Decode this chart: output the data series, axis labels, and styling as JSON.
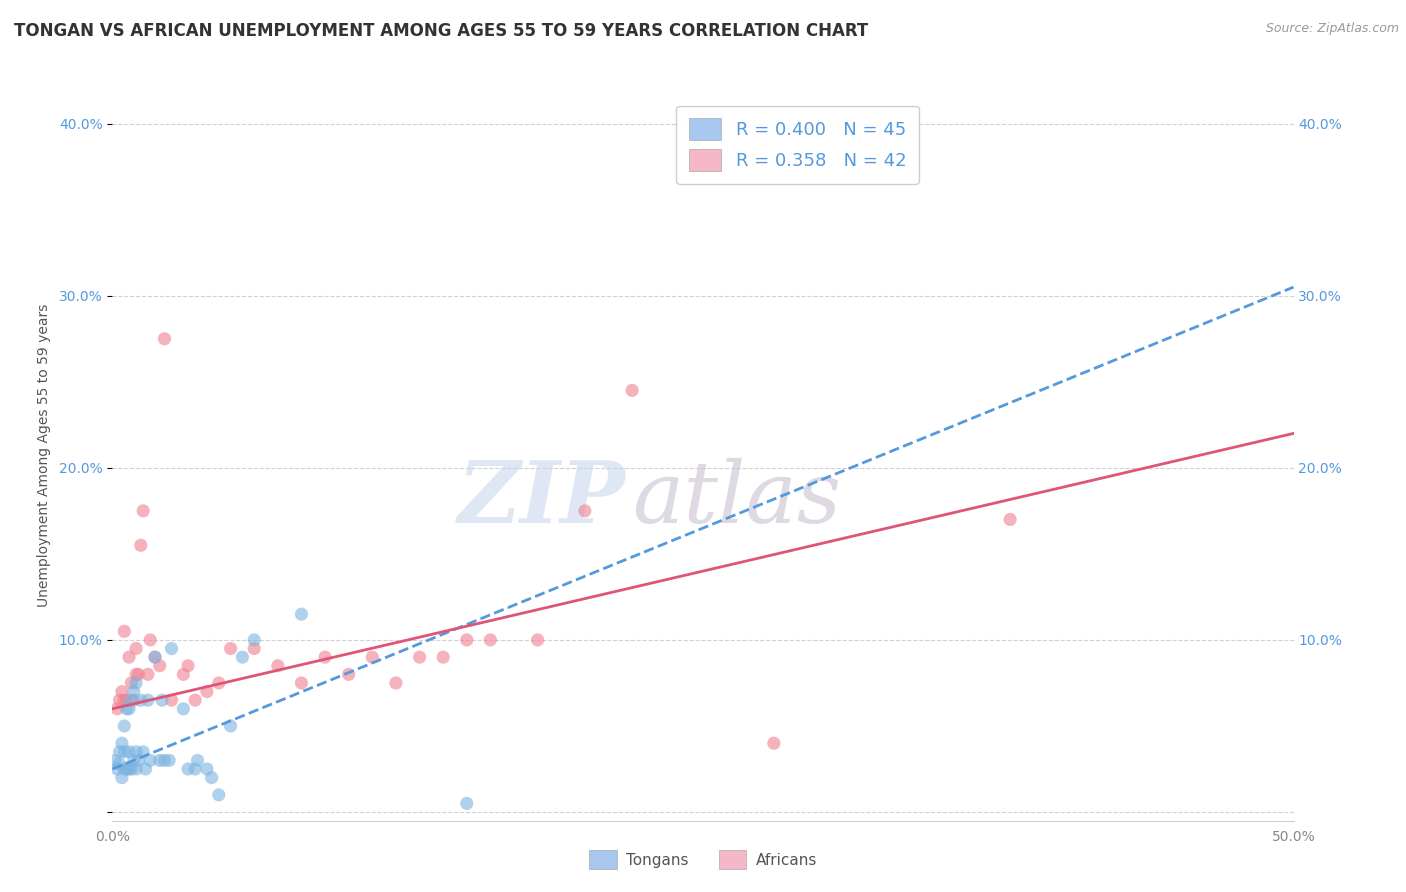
{
  "title": "TONGAN VS AFRICAN UNEMPLOYMENT AMONG AGES 55 TO 59 YEARS CORRELATION CHART",
  "source": "Source: ZipAtlas.com",
  "xlabel": "",
  "ylabel": "Unemployment Among Ages 55 to 59 years",
  "xlim": [
    0.0,
    0.5
  ],
  "ylim": [
    -0.005,
    0.42
  ],
  "xticks": [
    0.0,
    0.1,
    0.2,
    0.3,
    0.4,
    0.5
  ],
  "yticks": [
    0.0,
    0.1,
    0.2,
    0.3,
    0.4
  ],
  "xticklabels": [
    "0.0%",
    "",
    "",
    "",
    "",
    "50.0%"
  ],
  "yticklabels": [
    "",
    "10.0%",
    "20.0%",
    "30.0%",
    "40.0%"
  ],
  "right_yticklabels": [
    "",
    "10.0%",
    "20.0%",
    "30.0%",
    "40.0%"
  ],
  "legend_bottom": [
    "Tongans",
    "Africans"
  ],
  "tongan_patch_color": "#a8c8f0",
  "african_patch_color": "#f4b8c8",
  "R_tongan": 0.4,
  "N_tongan": 45,
  "R_african": 0.358,
  "N_african": 42,
  "tongan_color": "#7ab3e0",
  "african_color": "#f08090",
  "tongan_scatter_x": [
    0.001,
    0.002,
    0.003,
    0.003,
    0.004,
    0.004,
    0.005,
    0.005,
    0.005,
    0.006,
    0.006,
    0.007,
    0.007,
    0.007,
    0.008,
    0.008,
    0.009,
    0.009,
    0.01,
    0.01,
    0.01,
    0.011,
    0.012,
    0.013,
    0.014,
    0.015,
    0.016,
    0.018,
    0.02,
    0.021,
    0.022,
    0.024,
    0.025,
    0.03,
    0.032,
    0.035,
    0.036,
    0.04,
    0.042,
    0.045,
    0.05,
    0.055,
    0.06,
    0.08,
    0.15
  ],
  "tongan_scatter_y": [
    0.03,
    0.025,
    0.028,
    0.035,
    0.02,
    0.04,
    0.025,
    0.035,
    0.05,
    0.025,
    0.06,
    0.025,
    0.035,
    0.06,
    0.025,
    0.065,
    0.03,
    0.07,
    0.025,
    0.035,
    0.075,
    0.03,
    0.065,
    0.035,
    0.025,
    0.065,
    0.03,
    0.09,
    0.03,
    0.065,
    0.03,
    0.03,
    0.095,
    0.06,
    0.025,
    0.025,
    0.03,
    0.025,
    0.02,
    0.01,
    0.05,
    0.09,
    0.1,
    0.115,
    0.005
  ],
  "african_scatter_x": [
    0.002,
    0.003,
    0.004,
    0.005,
    0.005,
    0.006,
    0.007,
    0.008,
    0.009,
    0.01,
    0.01,
    0.011,
    0.012,
    0.013,
    0.015,
    0.016,
    0.018,
    0.02,
    0.022,
    0.025,
    0.03,
    0.032,
    0.035,
    0.04,
    0.045,
    0.05,
    0.06,
    0.07,
    0.08,
    0.09,
    0.1,
    0.11,
    0.12,
    0.13,
    0.14,
    0.15,
    0.16,
    0.18,
    0.2,
    0.22,
    0.28,
    0.38
  ],
  "african_scatter_y": [
    0.06,
    0.065,
    0.07,
    0.065,
    0.105,
    0.065,
    0.09,
    0.075,
    0.065,
    0.08,
    0.095,
    0.08,
    0.155,
    0.175,
    0.08,
    0.1,
    0.09,
    0.085,
    0.275,
    0.065,
    0.08,
    0.085,
    0.065,
    0.07,
    0.075,
    0.095,
    0.095,
    0.085,
    0.075,
    0.09,
    0.08,
    0.09,
    0.075,
    0.09,
    0.09,
    0.1,
    0.1,
    0.1,
    0.175,
    0.245,
    0.04,
    0.17
  ],
  "tongan_line_x": [
    0.0,
    0.5
  ],
  "tongan_line_y": [
    0.025,
    0.305
  ],
  "african_line_x": [
    0.0,
    0.5
  ],
  "african_line_y": [
    0.06,
    0.22
  ],
  "watermark_zip": "ZIP",
  "watermark_atlas": "atlas",
  "background_color": "#ffffff",
  "grid_color": "#d0d0d0"
}
